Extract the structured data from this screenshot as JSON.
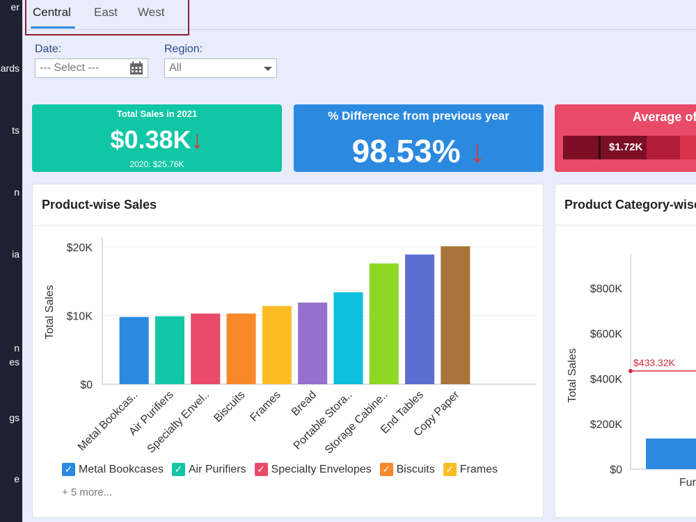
{
  "sidebar": {
    "items": [
      {
        "label": "er"
      },
      {
        "label": "ards"
      },
      {
        "label": "ts"
      },
      {
        "label": "n"
      },
      {
        "label": "ia"
      },
      {
        "label": "n"
      },
      {
        "label": "es"
      },
      {
        "label": "gs"
      },
      {
        "label": "e"
      }
    ]
  },
  "tabs": [
    {
      "label": "Central"
    },
    {
      "label": "East"
    },
    {
      "label": "West"
    }
  ],
  "filters": {
    "date": {
      "label": "Date:",
      "placeholder": "--- Select ---"
    },
    "region": {
      "label": "Region:",
      "value": "All"
    }
  },
  "kpis": {
    "total_sales": {
      "title": "Total Sales in 2021",
      "value": "$0.38K",
      "sub": "2020: $25.76K",
      "trend": "↓"
    },
    "pct_diff": {
      "title": "% Difference from previous year",
      "value": "98.53%",
      "trend": "↓"
    },
    "average": {
      "title": "Average of",
      "bar_label": "$1.72K"
    }
  },
  "cards": {
    "product_sales": {
      "title": "Product-wise Sales",
      "more": "+ 5 more..."
    },
    "category_sales": {
      "title": "Product Category-wise"
    }
  },
  "colors": {
    "teal": "#11c6a5",
    "blue": "#2b8ae0",
    "pink": "#e84a68",
    "red_arrow": "#d33a3a",
    "accent_frame": "#8e1c3c"
  },
  "chart_data": [
    {
      "type": "bar",
      "title": "Product-wise Sales",
      "ylabel": "Total Sales",
      "xlabel": "",
      "ylim": [
        0,
        21000
      ],
      "yticks": [
        {
          "value": 0,
          "label": "$0"
        },
        {
          "value": 10000,
          "label": "$10K"
        },
        {
          "value": 20000,
          "label": "$20K"
        }
      ],
      "grid": true,
      "categories": [
        "Metal Bookcas..",
        "Air Purifiers",
        "Specialty Envel..",
        "Biscuits",
        "Frames",
        "Bread",
        "Portable Stora..",
        "Storage Cabine..",
        "End Tables",
        "Copy Paper"
      ],
      "values": [
        9800,
        9900,
        10300,
        10300,
        11400,
        11900,
        13400,
        17600,
        18900,
        20100
      ],
      "colors": [
        "#2b8ae0",
        "#11c6a5",
        "#e84a68",
        "#f7892b",
        "#fbbd23",
        "#9670cc",
        "#0ebfdf",
        "#8fd625",
        "#5a6fd0",
        "#a9743a"
      ],
      "legend": [
        {
          "name": "Metal Bookcases",
          "color": "#2b8ae0"
        },
        {
          "name": "Air Purifiers",
          "color": "#11c6a5"
        },
        {
          "name": "Specialty Envelopes",
          "color": "#e84a68"
        },
        {
          "name": "Biscuits",
          "color": "#f7892b"
        },
        {
          "name": "Frames",
          "color": "#fbbd23"
        }
      ],
      "legend_placement": "bottom"
    },
    {
      "type": "bar",
      "title": "Product Category-wise",
      "ylabel": "Total Sales",
      "ylim": [
        0,
        950000
      ],
      "yticks": [
        {
          "value": 0,
          "label": "$0"
        },
        {
          "value": 200000,
          "label": "$200K"
        },
        {
          "value": 400000,
          "label": "$400K"
        },
        {
          "value": 600000,
          "label": "$600K"
        },
        {
          "value": 800000,
          "label": "$800K"
        }
      ],
      "categories": [
        "Fur"
      ],
      "values": [
        135000
      ],
      "color": "#2b8ae0",
      "reference_line": {
        "value": 433320,
        "label": "$433.32K",
        "color": "#d9283a"
      }
    }
  ]
}
